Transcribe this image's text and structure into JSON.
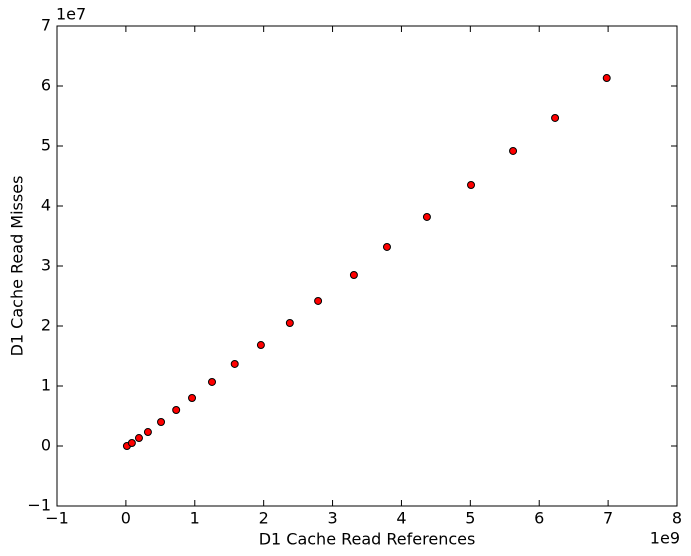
{
  "chart_data": {
    "type": "scatter",
    "xlabel": "D1 Cache Read References",
    "ylabel": "D1 Cache Read Misses",
    "x_offset_text": "1e9",
    "y_offset_text": "1e7",
    "color": "#ff0000",
    "x": [
      0.015,
      0.087,
      0.19,
      0.32,
      0.51,
      0.73,
      0.96,
      1.25,
      1.58,
      1.96,
      2.38,
      2.79,
      3.31,
      3.79,
      4.37,
      5.01,
      5.62,
      6.23,
      6.98
    ],
    "values": [
      0.0,
      0.05,
      0.133,
      0.233,
      0.4,
      0.6,
      0.8,
      1.067,
      1.367,
      1.683,
      2.05,
      2.417,
      2.85,
      3.317,
      3.817,
      4.35,
      4.917,
      5.467,
      6.133
    ],
    "xlim": [
      -1,
      8
    ],
    "ylim": [
      -1,
      7
    ],
    "xticks": [
      {
        "value": -1,
        "label": "−1"
      },
      0,
      1,
      2,
      3,
      4,
      5,
      6,
      7,
      8
    ],
    "yticks": [
      {
        "value": -1,
        "label": "−1"
      },
      0,
      1,
      2,
      3,
      4,
      5,
      6,
      7
    ],
    "grid": false
  }
}
